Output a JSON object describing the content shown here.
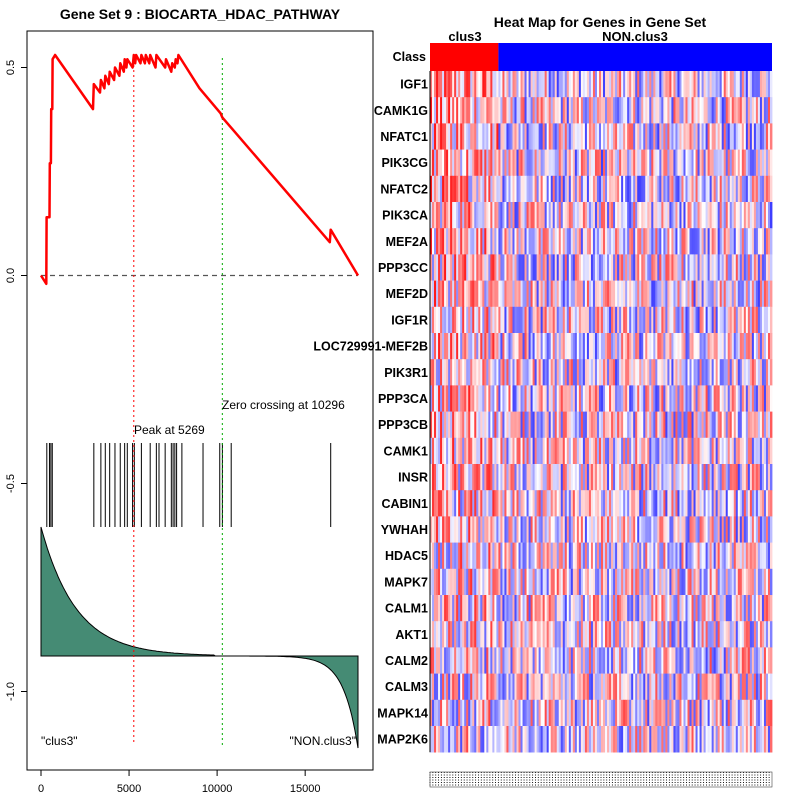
{
  "chart_data": [
    {
      "type": "line",
      "title": "Gene Set  9 : BIOCARTA_HDAC_PATHWAY",
      "x_ticks": [
        "0",
        "5000",
        "10000",
        "15000"
      ],
      "x_tick_values": [
        0,
        5000,
        10000,
        15000
      ],
      "y_ticks": [
        "0.5",
        "0.0",
        "-0.5",
        "-1.0"
      ],
      "y_tick_values": [
        0.5,
        0.0,
        -0.5,
        -1.0
      ],
      "xlim": [
        0,
        18000
      ],
      "ylim": [
        -1.15,
        0.6
      ],
      "running_es": {
        "color": "#ff0000",
        "x": [
          0,
          300,
          320,
          480,
          500,
          560,
          580,
          640,
          660,
          800,
          2950,
          3000,
          3350,
          3400,
          3600,
          3650,
          3850,
          3900,
          4150,
          4200,
          4450,
          4500,
          4700,
          4750,
          4850,
          4900,
          5200,
          5269,
          5350,
          5400,
          5650,
          5700,
          5900,
          5950,
          6150,
          6200,
          6500,
          6550,
          7050,
          7100,
          7400,
          7450,
          7600,
          7650,
          7750,
          7800,
          9000,
          10200,
          10296,
          16400,
          16450,
          18000
        ],
        "y": [
          0.0,
          -0.02,
          0.14,
          0.14,
          0.27,
          0.27,
          0.4,
          0.4,
          0.52,
          0.53,
          0.4,
          0.46,
          0.44,
          0.47,
          0.45,
          0.48,
          0.46,
          0.49,
          0.47,
          0.5,
          0.48,
          0.51,
          0.49,
          0.52,
          0.5,
          0.52,
          0.5,
          0.53,
          0.51,
          0.53,
          0.51,
          0.53,
          0.51,
          0.53,
          0.51,
          0.53,
          0.5,
          0.53,
          0.5,
          0.52,
          0.49,
          0.51,
          0.5,
          0.52,
          0.51,
          0.53,
          0.45,
          0.39,
          0.38,
          0.08,
          0.11,
          0.0
        ]
      },
      "peak": {
        "x": 5269,
        "label": "Peak at 5269",
        "color": "#ff0000"
      },
      "zero_crossing": {
        "x": 10296,
        "label": "Zero crossing at 10296",
        "color": "#00aa00"
      },
      "hit_positions": [
        330,
        480,
        560,
        640,
        3000,
        3400,
        3650,
        3900,
        4200,
        4500,
        4750,
        4900,
        5200,
        5300,
        5700,
        6200,
        6550,
        6700,
        7050,
        7400,
        7500,
        7600,
        7700,
        8000,
        9200,
        10150,
        10300,
        10800,
        16450
      ],
      "ranked_metric_color": "#458b74",
      "class_labels": [
        "\"clus3\"",
        "\"NON.clus3\""
      ]
    },
    {
      "type": "heatmap",
      "title": "Heat Map for Genes in Gene Set",
      "class_row_label": "Class",
      "class_groups": [
        {
          "name": "clus3",
          "color": "#ff0000",
          "fraction": 0.2
        },
        {
          "name": "NON.clus3",
          "color": "#0000ff",
          "fraction": 0.8
        }
      ],
      "genes": [
        "IGF1",
        "CAMK1G",
        "NFATC1",
        "PIK3CG",
        "NFATC2",
        "PIK3CA",
        "MEF2A",
        "PPP3CC",
        "MEF2D",
        "IGF1R",
        "LOC729991-MEF2B",
        "PIK3R1",
        "PPP3CA",
        "PPP3CB",
        "CAMK1",
        "INSR",
        "CABIN1",
        "YWHAH",
        "HDAC5",
        "MAPK7",
        "CALM1",
        "AKT1",
        "CALM2",
        "CALM3",
        "MAPK14",
        "MAP2K6"
      ],
      "n_columns": 170
    }
  ]
}
